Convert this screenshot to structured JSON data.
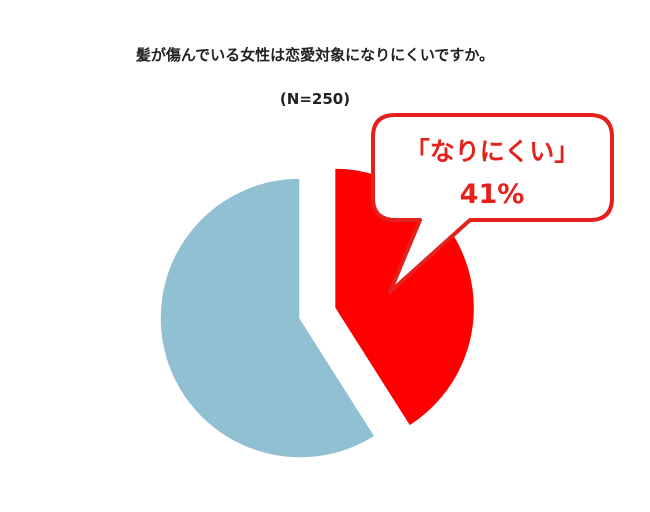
{
  "chart_data": {
    "type": "pie",
    "title": "髪が傷んでいる女性は恋愛対象になりにくいですか。",
    "subtitle": "(N=250)",
    "slices": [
      {
        "label": "なりにくい",
        "value": 41,
        "color": "#ff0000",
        "exploded": true
      },
      {
        "value": 59,
        "color": "#92c0d3"
      }
    ],
    "callout": {
      "label": "「なりにくい」",
      "value_text": "41%",
      "border_color": "#e4211c"
    }
  }
}
